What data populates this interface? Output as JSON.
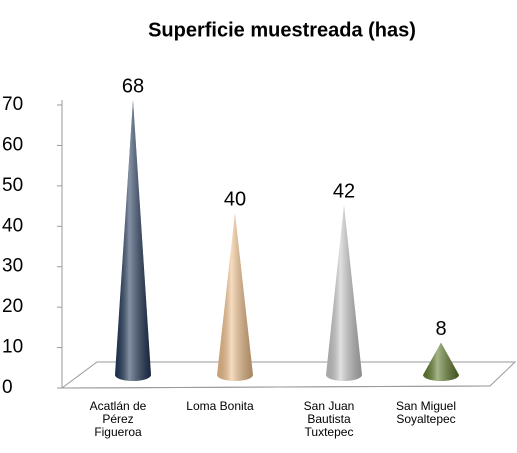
{
  "chart_data": {
    "type": "cone",
    "title": "Superficie muestreada (has)",
    "categories": [
      "Acatlán de Pérez Figueroa",
      "Loma Bonita",
      "San Juan Bautista Tuxtepec",
      "San Miguel Soyaltepec"
    ],
    "values": [
      68,
      40,
      42,
      8
    ],
    "colors": [
      "#1f3557",
      "#f0c08a",
      "#c8c8c8",
      "#5f7a2a"
    ],
    "ylim": [
      0,
      70
    ],
    "yticks": [
      0,
      10,
      20,
      30,
      40,
      50,
      60,
      70
    ]
  }
}
